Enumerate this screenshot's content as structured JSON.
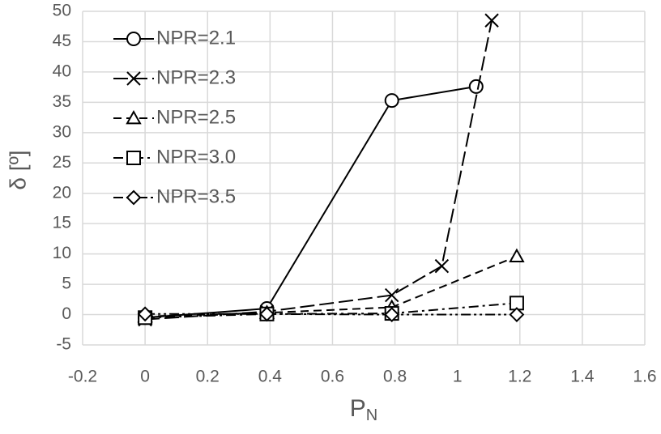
{
  "chart_data": {
    "type": "line",
    "x_label": "P",
    "x_label_sub": "N",
    "y_label": "δ [º]",
    "xlim": [
      -0.2,
      1.6
    ],
    "xticks": [
      -0.2,
      0,
      0.2,
      0.4,
      0.6,
      0.8,
      1,
      1.2,
      1.4,
      1.6
    ],
    "ylim": [
      -5,
      50
    ],
    "yticks": [
      -5,
      0,
      5,
      10,
      15,
      20,
      25,
      30,
      35,
      40,
      45,
      50
    ],
    "grid": true,
    "legend": "upper-left",
    "series": [
      {
        "name": "NPR=2.1",
        "color": "#000000",
        "marker": "circle",
        "dash": "solid",
        "x": [
          0,
          0.39,
          0.79,
          1.06
        ],
        "values": [
          -0.5,
          1.0,
          35.3,
          37.6
        ]
      },
      {
        "name": "NPR=2.3",
        "color": "#000000",
        "marker": "x",
        "dash": "longdash",
        "x": [
          0,
          0.39,
          0.79,
          0.95,
          1.11
        ],
        "values": [
          -0.8,
          0.5,
          3.2,
          8.0,
          48.5
        ]
      },
      {
        "name": "NPR=2.5",
        "color": "#000000",
        "marker": "triangle",
        "dash": "dash",
        "x": [
          0,
          0.39,
          0.79,
          1.19
        ],
        "values": [
          -0.3,
          0.3,
          1.2,
          9.6
        ]
      },
      {
        "name": "NPR=3.0",
        "color": "#000000",
        "marker": "square",
        "dash": "dashdot",
        "x": [
          0,
          0.39,
          0.79,
          1.19
        ],
        "values": [
          -0.5,
          0.1,
          0.2,
          1.9
        ]
      },
      {
        "name": "NPR=3.5",
        "color": "#000000",
        "marker": "diamond",
        "dash": "dashdotdot",
        "x": [
          0,
          0.39,
          0.79,
          1.19
        ],
        "values": [
          0.1,
          0.1,
          0.0,
          0.0
        ]
      }
    ]
  }
}
